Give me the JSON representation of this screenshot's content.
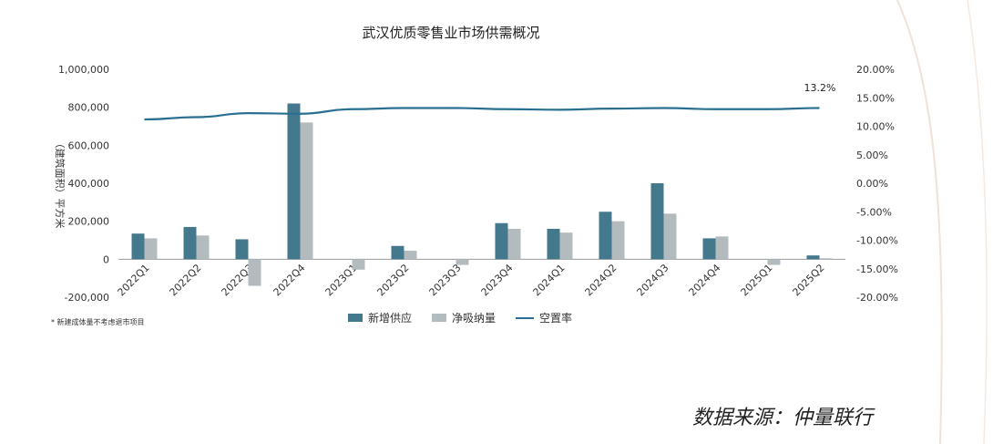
{
  "chart_data": {
    "type": "bar",
    "title": "武汉优质零售业市场供需概况",
    "ylabel": "（建筑面积）平方米",
    "categories": [
      "2022Q1",
      "2022Q2",
      "2022Q3",
      "2022Q4",
      "2023Q1",
      "2023Q2",
      "2023Q3",
      "2023Q4",
      "2024Q1",
      "2024Q2",
      "2024Q3",
      "2024Q4",
      "2025Q1",
      "2025Q2"
    ],
    "series": [
      {
        "name": "新增供应",
        "color": "#44788c",
        "values": [
          135000,
          170000,
          105000,
          820000,
          0,
          70000,
          0,
          190000,
          160000,
          250000,
          400000,
          110000,
          0,
          20000
        ]
      },
      {
        "name": "净吸纳量",
        "color": "#b4bbbe",
        "values": [
          110000,
          125000,
          -140000,
          720000,
          -55000,
          45000,
          -30000,
          160000,
          140000,
          200000,
          240000,
          120000,
          -30000,
          5000
        ]
      },
      {
        "name": "空置率",
        "color": "#2a6f92",
        "type": "line",
        "axis": "right",
        "values": [
          11.2,
          11.6,
          12.3,
          12.2,
          13.0,
          13.2,
          13.2,
          13.0,
          12.9,
          13.1,
          13.2,
          13.0,
          13.0,
          13.2
        ]
      }
    ],
    "ylim": [
      -200000,
      1000000
    ],
    "y2lim": [
      -20,
      20
    ],
    "left_ticks": [
      "1,000,000",
      "800,000",
      "600,000",
      "400,000",
      "200,000",
      "0",
      "-200,000"
    ],
    "right_ticks": [
      "20.00%",
      "15.00%",
      "10.00%",
      "5.00%",
      "0.00%",
      "-5.00%",
      "-10.00%",
      "-15.00%",
      "-20.00%"
    ],
    "annotation": "13.2%",
    "legend_position": "bottom",
    "grid": false
  },
  "footnote": "* 新建成体量不考虑退市项目",
  "source": "数据来源：仲量联行"
}
